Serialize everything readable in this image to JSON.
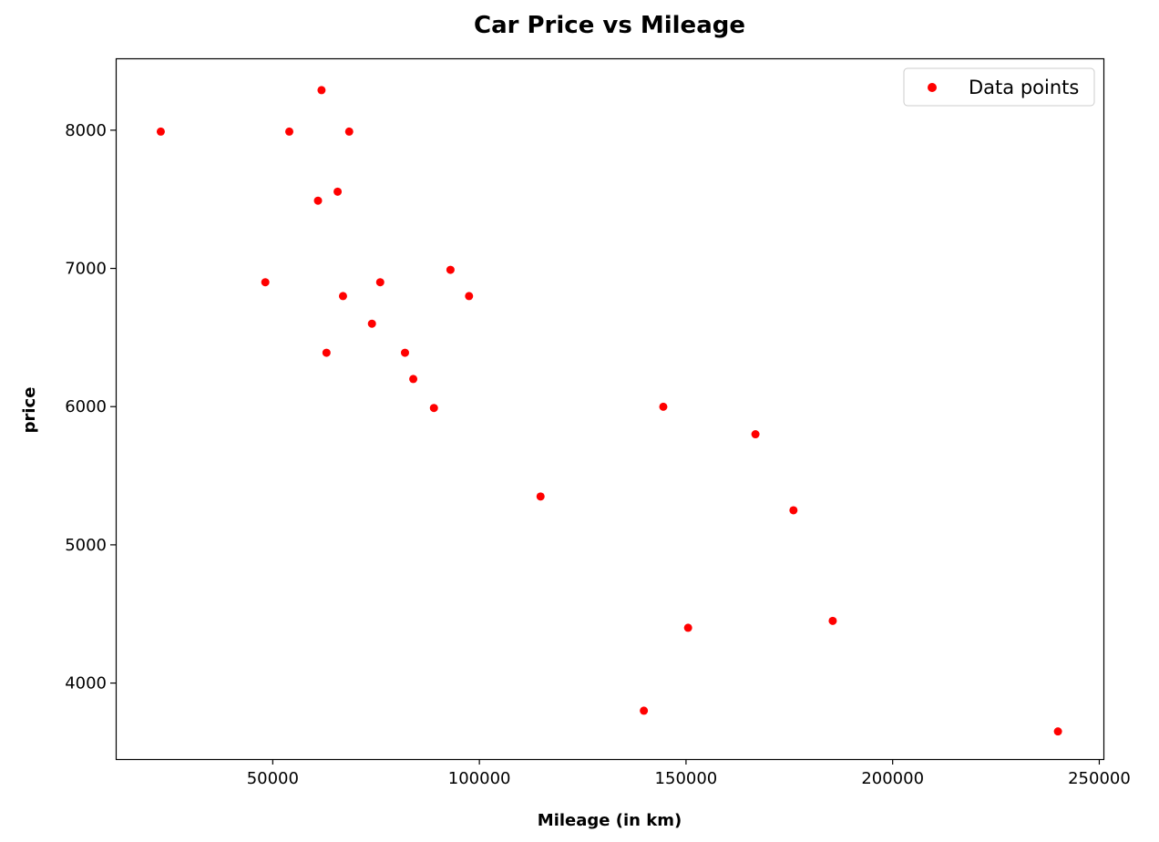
{
  "chart_data": {
    "type": "scatter",
    "title": "Car Price vs Mileage",
    "xlabel": "Mileage (in km)",
    "ylabel": "price",
    "xlim": [
      12000,
      251000
    ],
    "ylim": [
      3450,
      8520
    ],
    "xticks": [
      50000,
      100000,
      150000,
      200000,
      250000
    ],
    "yticks": [
      4000,
      5000,
      6000,
      7000,
      8000
    ],
    "grid": false,
    "legend_position": "top-right",
    "series": [
      {
        "name": "Data points",
        "color": "#ff0000",
        "x": [
          240000,
          139800,
          150500,
          185500,
          176000,
          114800,
          166800,
          89000,
          144500,
          84000,
          82000,
          63000,
          74000,
          97500,
          67000,
          76000,
          48200,
          93000,
          60950,
          65700,
          54000,
          68500,
          22900,
          61800
        ],
        "y": [
          3650,
          3800,
          4400,
          4450,
          5250,
          5350,
          5800,
          5990,
          5999,
          6200,
          6390,
          6390,
          6600,
          6800,
          6800,
          6900,
          6900,
          6990,
          7490,
          7555,
          7990,
          7990,
          7990,
          8290
        ]
      }
    ]
  }
}
